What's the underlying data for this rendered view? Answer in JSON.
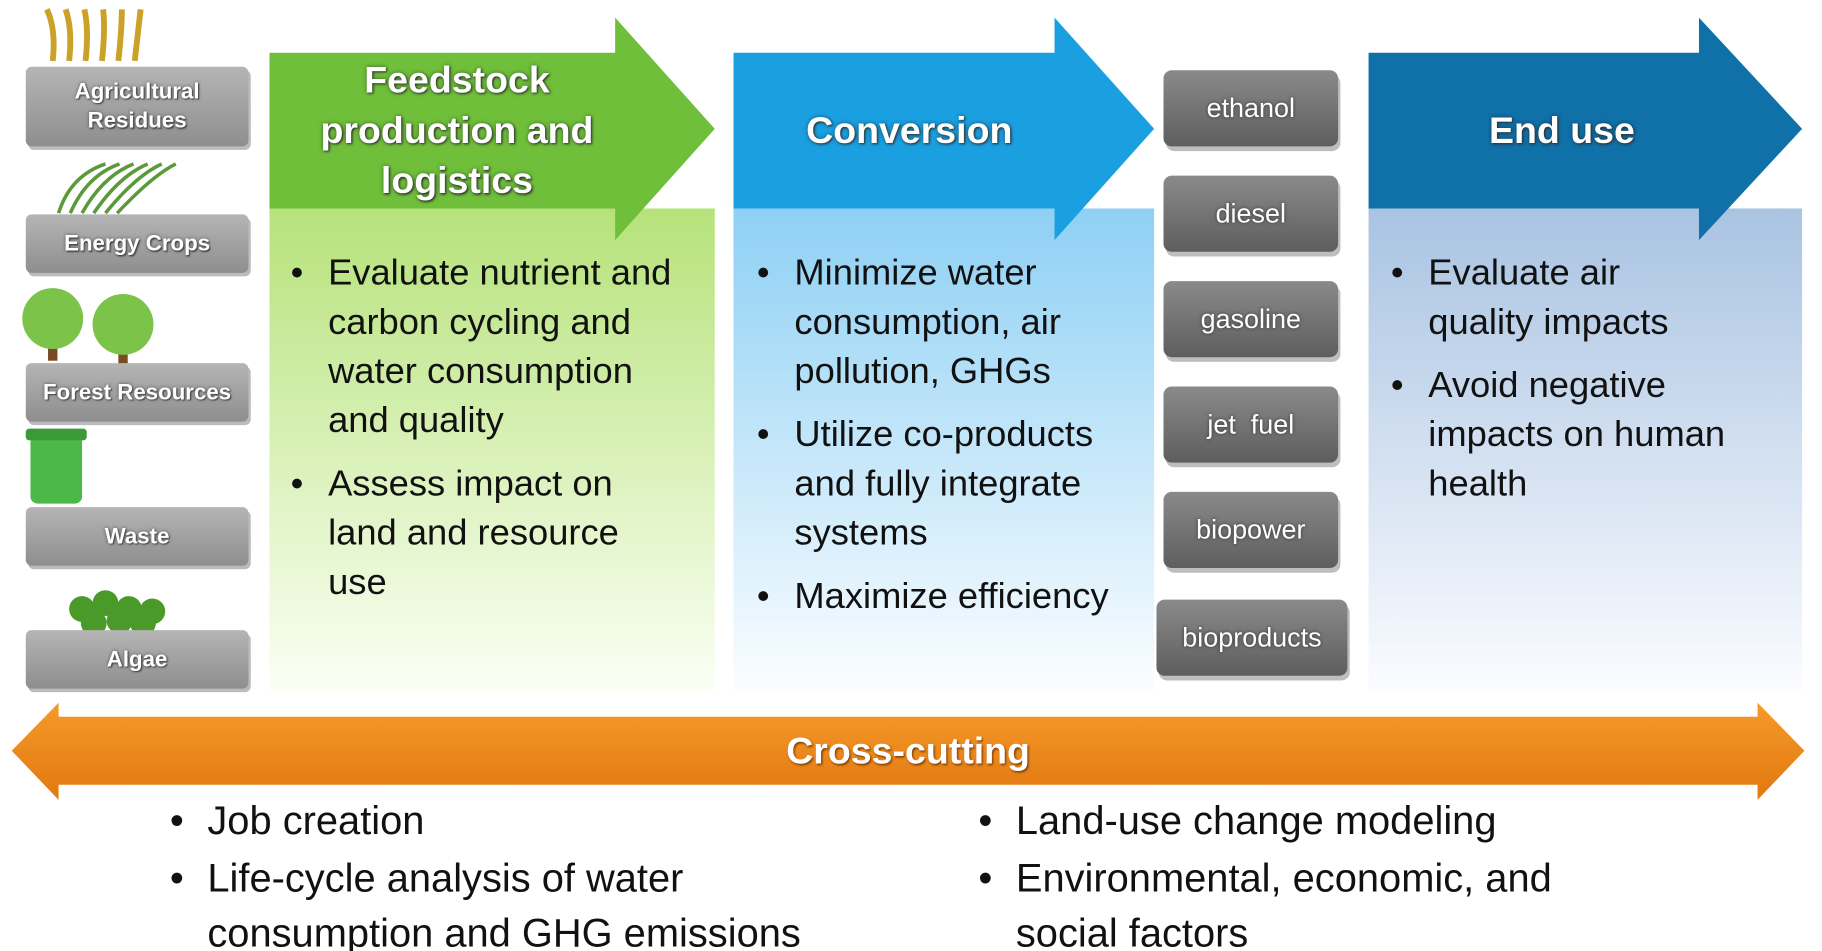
{
  "feedstocks": [
    "Agricultural Residues",
    "Energy Crops",
    "Forest Resources",
    "Waste",
    "Algae"
  ],
  "stages": [
    {
      "title": "Feedstock production and logistics",
      "bullets": [
        "Evaluate nutrient and carbon cycling and water consumption and quality",
        "Assess impact on land and resource use"
      ]
    },
    {
      "title": "Conversion",
      "bullets": [
        "Minimize water consumption, air pollution, GHGs",
        "Utilize co-products and fully integrate systems",
        "Maximize efficiency"
      ]
    },
    {
      "title": "End use",
      "bullets": [
        "Evaluate air quality impacts",
        "Avoid negative impacts on human health"
      ]
    }
  ],
  "products": [
    "ethanol",
    "diesel",
    "gasoline",
    "jet  fuel",
    "biopower",
    "bioproducts"
  ],
  "cross_cutting": {
    "title": "Cross-cutting",
    "left": [
      "Job creation",
      "Life-cycle analysis of water consumption and GHG emissions"
    ],
    "right": [
      "Land-use change modeling",
      "Environmental, economic, and social factors"
    ]
  }
}
